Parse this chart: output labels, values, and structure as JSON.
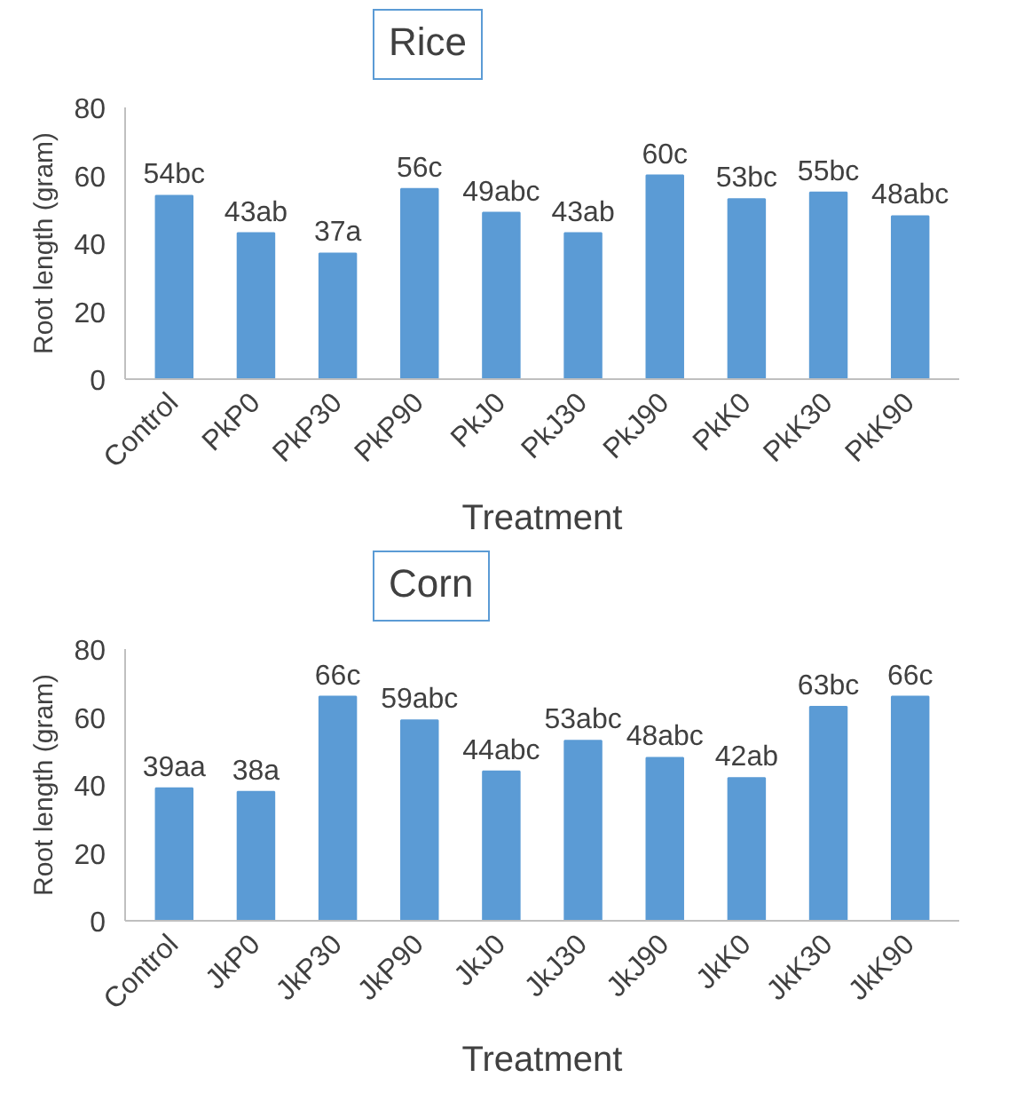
{
  "chart_data": [
    {
      "type": "bar",
      "title": "Rice",
      "xlabel": "Treatment",
      "ylabel": "Root length (gram)",
      "categories": [
        "Control",
        "PkP0",
        "PkP30",
        "PkP90",
        "PkJ0",
        "PkJ30",
        "PkJ90",
        "PkK0",
        "PkK30",
        "PkK90"
      ],
      "values": [
        54,
        43,
        37,
        56,
        49,
        43,
        60,
        53,
        55,
        48
      ],
      "value_labels": [
        "54bc",
        "43ab",
        "37a",
        "56c",
        "49abc",
        "43ab",
        "60c",
        "53bc",
        "55bc",
        "48abc"
      ],
      "color": "#5b9bd5",
      "ylim": [
        0,
        80
      ],
      "yticks": [
        0,
        20,
        40,
        60,
        80
      ],
      "grid": false
    },
    {
      "type": "bar",
      "title": "Corn",
      "xlabel": "Treatment",
      "ylabel": "Root length (gram)",
      "categories": [
        "Control",
        "JkP0",
        "JkP30",
        "JkP90",
        "JkJ0",
        "JkJ30",
        "JkJ90",
        "JkK0",
        "JkK30",
        "JkK90"
      ],
      "values": [
        39,
        38,
        66,
        59,
        44,
        53,
        48,
        42,
        63,
        66
      ],
      "value_labels": [
        "39aa",
        "38a",
        "66c",
        "59abc",
        "44abc",
        "53abc",
        "48abc",
        "42ab",
        "63bc",
        "66c"
      ],
      "color": "#5b9bd5",
      "ylim": [
        0,
        80
      ],
      "yticks": [
        0,
        20,
        40,
        60,
        80
      ],
      "grid": false
    }
  ]
}
